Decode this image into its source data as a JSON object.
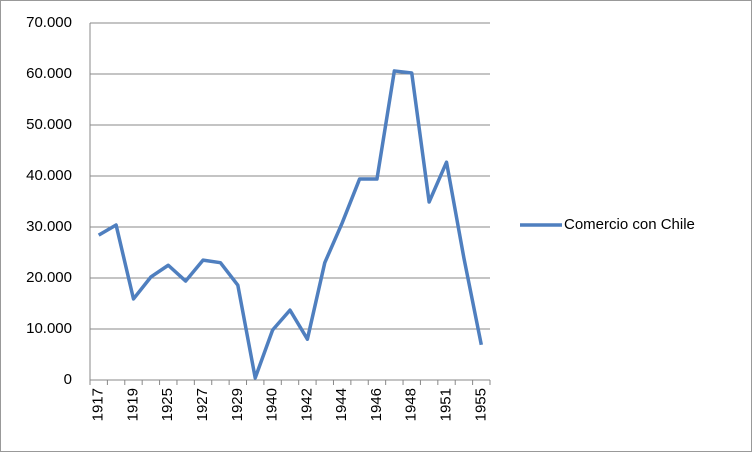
{
  "chart_data": {
    "type": "line",
    "categories": [
      "1917",
      null,
      "1919",
      null,
      "1925",
      null,
      "1927",
      null,
      "1929",
      null,
      "1940",
      null,
      "1942",
      null,
      "1944",
      null,
      "1946",
      null,
      "1948",
      null,
      "1951",
      null,
      "1955"
    ],
    "series": [
      {
        "name": "Comercio con Chile",
        "color": "#4f7fbf",
        "values": [
          28400,
          30400,
          15900,
          20200,
          22500,
          19400,
          23500,
          23000,
          18600,
          400,
          9800,
          13700,
          8000,
          23000,
          30800,
          39400,
          39400,
          60600,
          60200,
          34900,
          42700,
          23900,
          6900
        ]
      }
    ],
    "ylim": [
      0,
      70000
    ],
    "yticks": [
      0,
      {
        "value": 10000,
        "label": "10.000"
      },
      {
        "value": 20000,
        "label": "20.000"
      },
      {
        "value": 30000,
        "label": "30.000"
      },
      {
        "value": 40000,
        "label": "40.000"
      },
      {
        "value": 50000,
        "label": "50.000"
      },
      {
        "value": 60000,
        "label": "60.000"
      },
      {
        "value": 70000,
        "label": "70.000"
      }
    ],
    "grid": true,
    "legend": "right"
  }
}
